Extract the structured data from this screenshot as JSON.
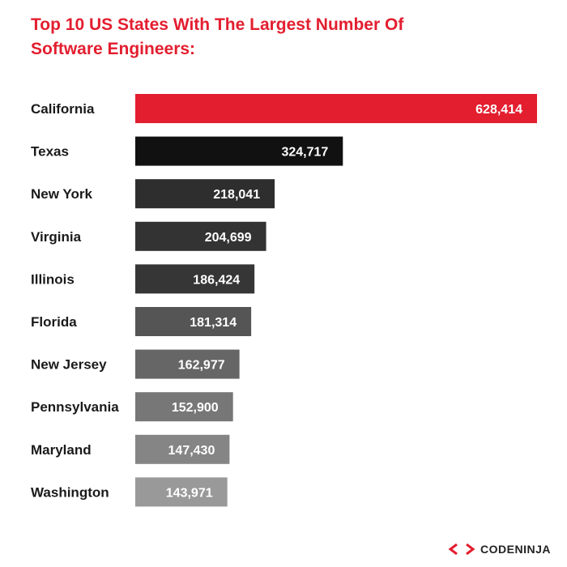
{
  "header": {
    "title_line1": "Top 10 US States With The Largest Number Of",
    "title_line2": "Software Engineers:"
  },
  "chart_data": {
    "type": "bar",
    "orientation": "horizontal",
    "categories": [
      "California",
      "Texas",
      "New York",
      "Virginia",
      "Illinois",
      "Florida",
      "New Jersey",
      "Pennsylvania",
      "Maryland",
      "Washington"
    ],
    "values": [
      628414,
      324717,
      218041,
      204699,
      186424,
      181314,
      162977,
      152900,
      147430,
      143971
    ],
    "value_labels": [
      "628,414",
      "324,717",
      "218,041",
      "204,699",
      "186,424",
      "181,314",
      "162,977",
      "152,900",
      "147,430",
      "143,971"
    ],
    "bar_colors": [
      "#e31e2f",
      "#111111",
      "#2e2e2e",
      "#333333",
      "#363636",
      "#555555",
      "#666666",
      "#777777",
      "#858585",
      "#999999"
    ],
    "title": "Top 10 US States With The Largest Number Of Software Engineers:",
    "xlim": [
      0,
      628414
    ],
    "grid": false,
    "legend": "none"
  },
  "brand": {
    "name": "CODENINJA",
    "mark_icon": "code-brackets-icon",
    "accent": "#e31e2f"
  }
}
